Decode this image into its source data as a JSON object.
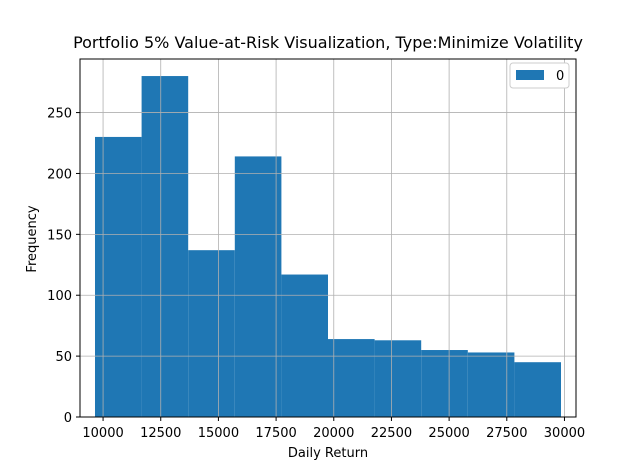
{
  "chart_data": {
    "type": "bar",
    "title": "Portfolio 5% Value-at-Risk Visualization, Type:Minimize Volatility",
    "xlabel": "Daily Return",
    "ylabel": "Frequency",
    "xlim": [
      9000,
      30500
    ],
    "ylim": [
      0,
      294
    ],
    "x_ticks": [
      10000,
      12500,
      15000,
      17500,
      20000,
      22500,
      25000,
      27500,
      30000
    ],
    "y_ticks": [
      0,
      50,
      100,
      150,
      200,
      250
    ],
    "grid": true,
    "legend_position": "top-right",
    "bar_color": "#1f77b4",
    "series": [
      {
        "name": "0",
        "bins": [
          {
            "x0": 9650,
            "x1": 11670,
            "value": 230
          },
          {
            "x0": 11670,
            "x1": 13690,
            "value": 280
          },
          {
            "x0": 13690,
            "x1": 15710,
            "value": 137
          },
          {
            "x0": 15710,
            "x1": 17730,
            "value": 214
          },
          {
            "x0": 17730,
            "x1": 19750,
            "value": 117
          },
          {
            "x0": 19750,
            "x1": 21770,
            "value": 64
          },
          {
            "x0": 21770,
            "x1": 23790,
            "value": 63
          },
          {
            "x0": 23790,
            "x1": 25810,
            "value": 55
          },
          {
            "x0": 25810,
            "x1": 27830,
            "value": 53
          },
          {
            "x0": 27830,
            "x1": 29850,
            "value": 45
          }
        ]
      }
    ]
  }
}
